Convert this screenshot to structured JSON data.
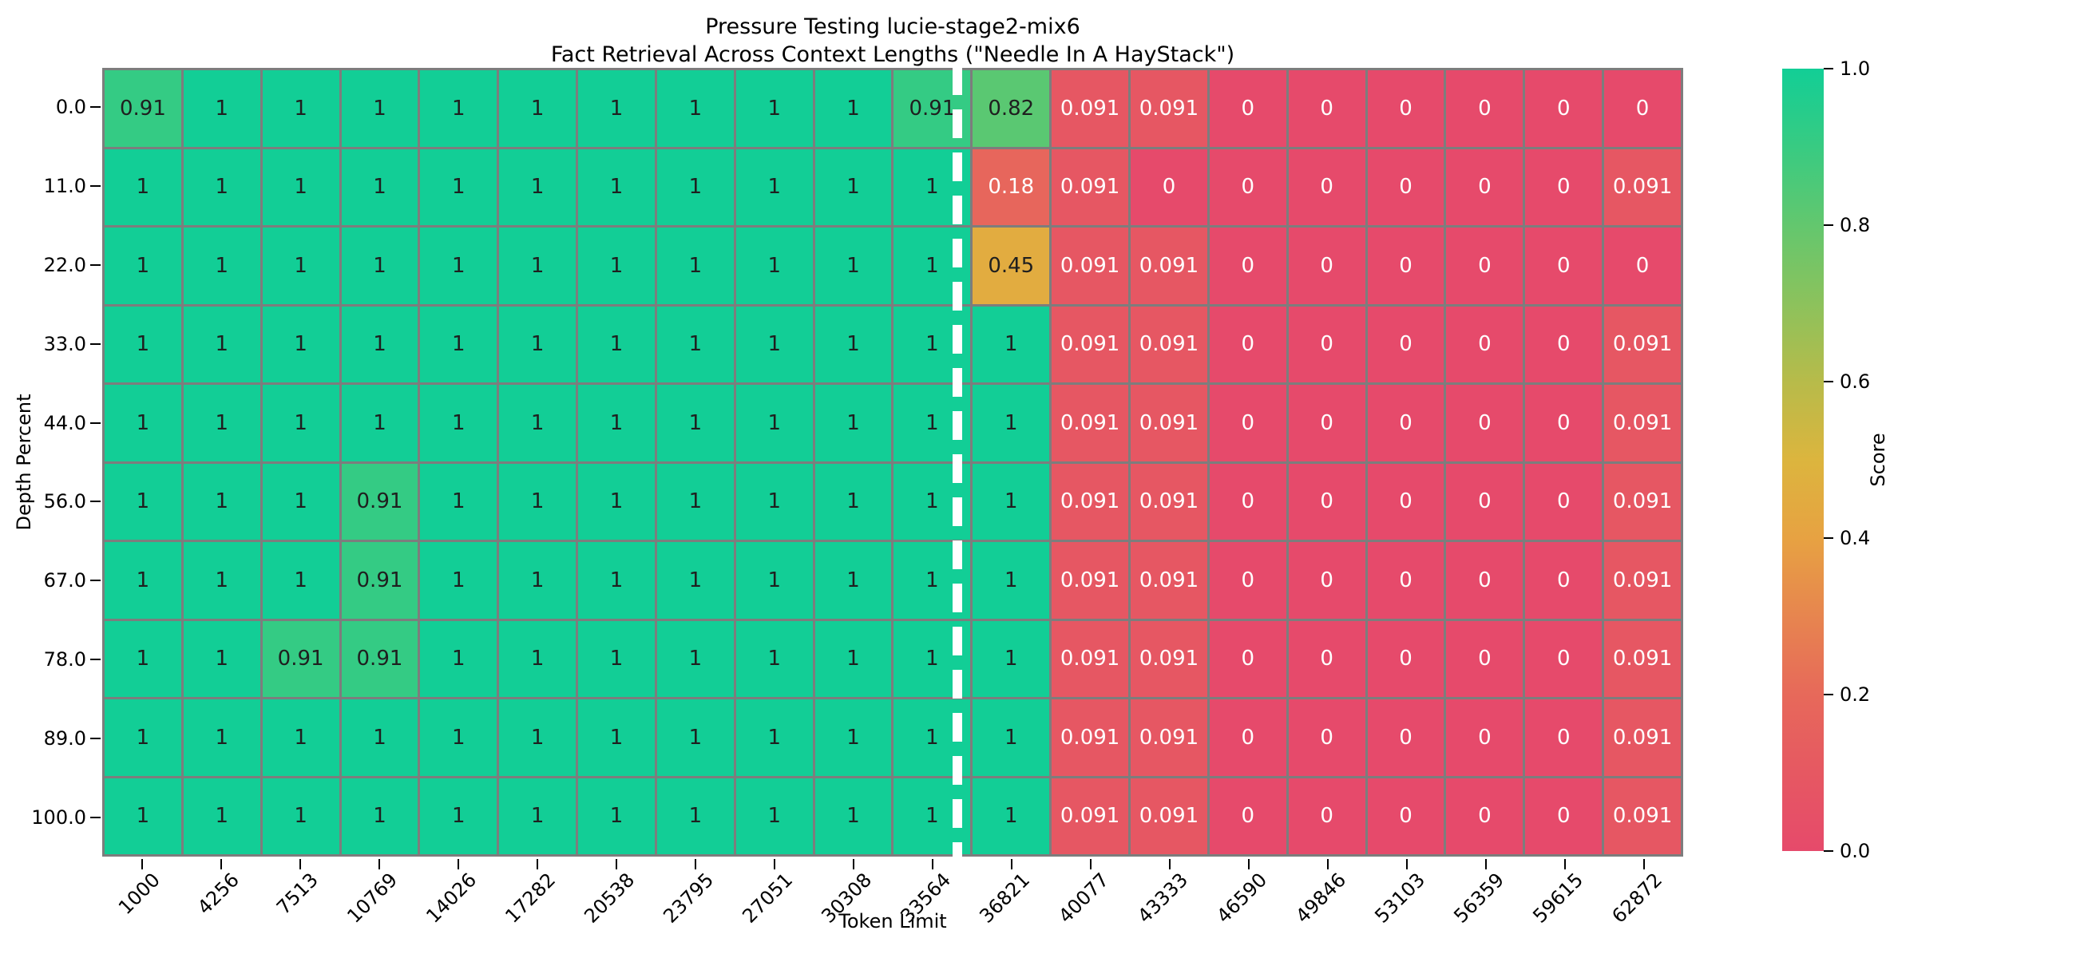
{
  "figure": {
    "title_line1": "Pressure Testing lucie-stage2-mix6",
    "title_line2": "Fact Retrieval Across Context Lengths (\"Needle In A HayStack\")"
  },
  "chart_data": {
    "type": "heatmap",
    "title": "Pressure Testing lucie-stage2-mix6\nFact Retrieval Across Context Lengths (\"Needle In A HayStack\")",
    "xlabel": "Token Limit",
    "ylabel": "Depth Percent",
    "x_categories": [
      "1000",
      "4256",
      "7513",
      "10769",
      "14026",
      "17282",
      "20538",
      "23795",
      "27051",
      "30308",
      "33564",
      "36821",
      "40077",
      "43333",
      "46590",
      "49846",
      "53103",
      "56359",
      "59615",
      "62872"
    ],
    "y_categories": [
      "0.0",
      "11.0",
      "22.0",
      "33.0",
      "44.0",
      "56.0",
      "67.0",
      "78.0",
      "89.0",
      "100.0"
    ],
    "values": [
      [
        0.91,
        1,
        1,
        1,
        1,
        1,
        1,
        1,
        1,
        1,
        0.91,
        0.82,
        0.091,
        0.091,
        0,
        0,
        0,
        0,
        0,
        0
      ],
      [
        1,
        1,
        1,
        1,
        1,
        1,
        1,
        1,
        1,
        1,
        1,
        0.18,
        0.091,
        0,
        0,
        0,
        0,
        0,
        0,
        0.091
      ],
      [
        1,
        1,
        1,
        1,
        1,
        1,
        1,
        1,
        1,
        1,
        1,
        0.45,
        0.091,
        0.091,
        0,
        0,
        0,
        0,
        0,
        0
      ],
      [
        1,
        1,
        1,
        1,
        1,
        1,
        1,
        1,
        1,
        1,
        1,
        1,
        0.091,
        0.091,
        0,
        0,
        0,
        0,
        0,
        0.091
      ],
      [
        1,
        1,
        1,
        1,
        1,
        1,
        1,
        1,
        1,
        1,
        1,
        1,
        0.091,
        0.091,
        0,
        0,
        0,
        0,
        0,
        0.091
      ],
      [
        1,
        1,
        1,
        0.91,
        1,
        1,
        1,
        1,
        1,
        1,
        1,
        1,
        0.091,
        0.091,
        0,
        0,
        0,
        0,
        0,
        0.091
      ],
      [
        1,
        1,
        1,
        0.91,
        1,
        1,
        1,
        1,
        1,
        1,
        1,
        1,
        0.091,
        0.091,
        0,
        0,
        0,
        0,
        0,
        0.091
      ],
      [
        1,
        1,
        0.91,
        0.91,
        1,
        1,
        1,
        1,
        1,
        1,
        1,
        1,
        0.091,
        0.091,
        0,
        0,
        0,
        0,
        0,
        0.091
      ],
      [
        1,
        1,
        1,
        1,
        1,
        1,
        1,
        1,
        1,
        1,
        1,
        1,
        0.091,
        0.091,
        0,
        0,
        0,
        0,
        0,
        0.091
      ],
      [
        1,
        1,
        1,
        1,
        1,
        1,
        1,
        1,
        1,
        1,
        1,
        1,
        0.091,
        0.091,
        0,
        0,
        0,
        0,
        0,
        0.091
      ]
    ],
    "value_range": [
      0.0,
      1.0
    ],
    "divider_after_column": 11,
    "colorbar": {
      "label": "Score",
      "tick_labels": [
        "1.0",
        "0.8",
        "0.6",
        "0.4",
        "0.2",
        "0.0"
      ],
      "tick_values": [
        1.0,
        0.8,
        0.6,
        0.4,
        0.2,
        0.0
      ]
    },
    "colormap_stops": [
      [
        0.0,
        "#e64a6b"
      ],
      [
        0.1,
        "#e65862"
      ],
      [
        0.2,
        "#e7695a"
      ],
      [
        0.3,
        "#e7854f"
      ],
      [
        0.4,
        "#e7a242"
      ],
      [
        0.5,
        "#dcb53e"
      ],
      [
        0.6,
        "#b7bb4a"
      ],
      [
        0.7,
        "#8cc25c"
      ],
      [
        0.8,
        "#63c76e"
      ],
      [
        0.9,
        "#38cb82"
      ],
      [
        1.0,
        "#12ce96"
      ]
    ],
    "grid_color": "#7d7d7d",
    "annotation_dark_text": "#1f1f1f",
    "annotation_light_text": "#ffffff",
    "annotation_dark_threshold": 0.4
  }
}
